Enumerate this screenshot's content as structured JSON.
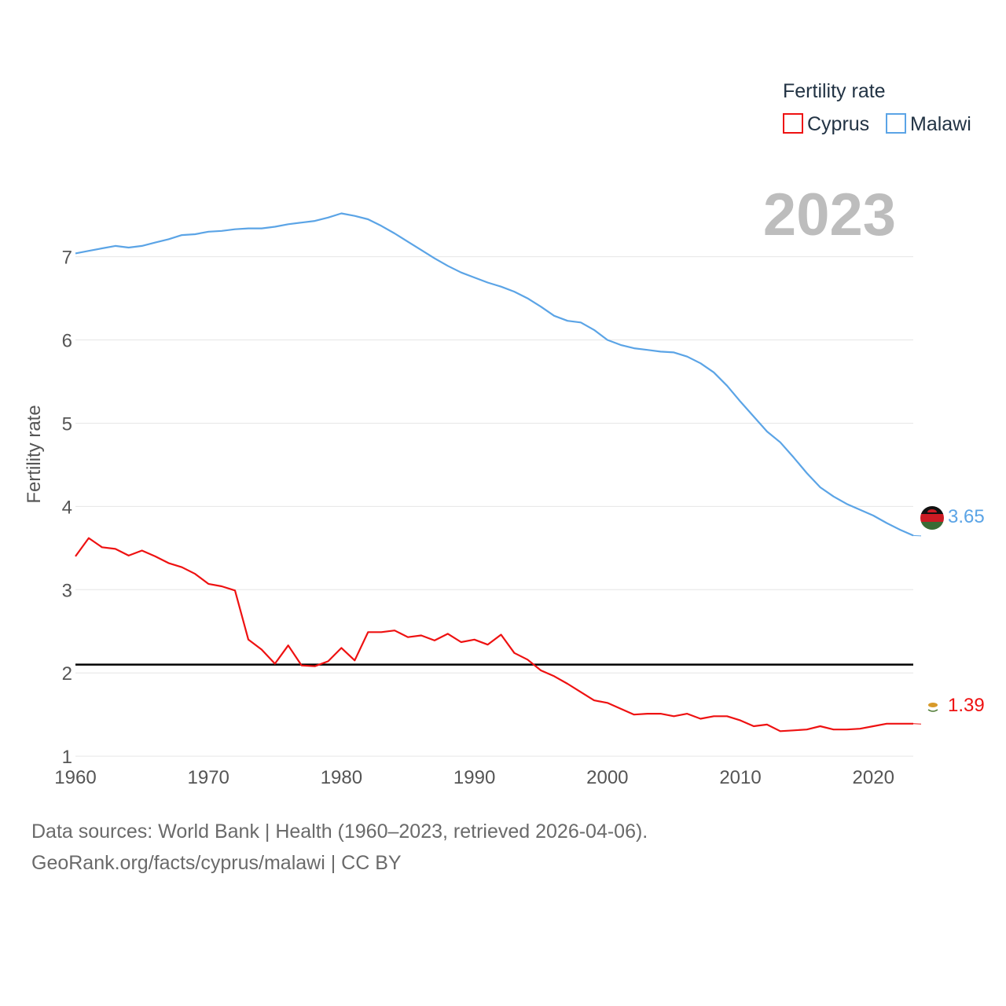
{
  "chart_data": {
    "type": "line",
    "title": "",
    "year_display": "2023",
    "xlabel": "",
    "ylabel": "Fertility rate",
    "legend": {
      "title": "Fertility rate",
      "position": "top-right"
    },
    "xlim": [
      1960,
      2023
    ],
    "ylim": [
      0.85,
      7.95
    ],
    "xticks": [
      1960,
      1970,
      1980,
      1990,
      2000,
      2010,
      2020
    ],
    "yticks": [
      1,
      2,
      3,
      4,
      5,
      6,
      7
    ],
    "reference_line": {
      "value": 2.1,
      "color": "#000000"
    },
    "x": [
      1960,
      1961,
      1962,
      1963,
      1964,
      1965,
      1966,
      1967,
      1968,
      1969,
      1970,
      1971,
      1972,
      1973,
      1974,
      1975,
      1976,
      1977,
      1978,
      1979,
      1980,
      1981,
      1982,
      1983,
      1984,
      1985,
      1986,
      1987,
      1988,
      1989,
      1990,
      1991,
      1992,
      1993,
      1994,
      1995,
      1996,
      1997,
      1998,
      1999,
      2000,
      2001,
      2002,
      2003,
      2004,
      2005,
      2006,
      2007,
      2008,
      2009,
      2010,
      2011,
      2012,
      2013,
      2014,
      2015,
      2016,
      2017,
      2018,
      2019,
      2020,
      2021,
      2022,
      2023
    ],
    "series": [
      {
        "name": "Cyprus",
        "color": "#ee1111",
        "end_label": "1.39",
        "values": [
          3.4,
          3.62,
          3.51,
          3.49,
          3.41,
          3.47,
          3.4,
          3.32,
          3.27,
          3.19,
          3.07,
          3.04,
          2.99,
          2.4,
          2.28,
          2.11,
          2.33,
          2.09,
          2.08,
          2.14,
          2.3,
          2.15,
          2.49,
          2.49,
          2.51,
          2.43,
          2.45,
          2.39,
          2.47,
          2.37,
          2.4,
          2.34,
          2.46,
          2.24,
          2.16,
          2.03,
          1.96,
          1.87,
          1.77,
          1.67,
          1.64,
          1.57,
          1.5,
          1.51,
          1.51,
          1.48,
          1.51,
          1.45,
          1.48,
          1.48,
          1.43,
          1.36,
          1.38,
          1.3,
          1.31,
          1.32,
          1.36,
          1.32,
          1.32,
          1.33,
          1.36,
          1.39,
          1.39,
          1.39
        ]
      },
      {
        "name": "Malawi",
        "color": "#5ba4e6",
        "end_label": "3.65",
        "values": [
          7.04,
          7.07,
          7.1,
          7.13,
          7.11,
          7.13,
          7.17,
          7.21,
          7.26,
          7.27,
          7.3,
          7.31,
          7.33,
          7.34,
          7.34,
          7.36,
          7.39,
          7.41,
          7.43,
          7.47,
          7.52,
          7.49,
          7.45,
          7.37,
          7.28,
          7.18,
          7.08,
          6.98,
          6.89,
          6.81,
          6.75,
          6.69,
          6.64,
          6.58,
          6.5,
          6.4,
          6.29,
          6.23,
          6.21,
          6.12,
          6.0,
          5.94,
          5.9,
          5.88,
          5.86,
          5.85,
          5.8,
          5.72,
          5.61,
          5.45,
          5.26,
          5.08,
          4.9,
          4.77,
          4.59,
          4.4,
          4.23,
          4.12,
          4.03,
          3.96,
          3.89,
          3.8,
          3.72,
          3.65
        ]
      }
    ]
  },
  "footer": {
    "source_line": "Data sources: World Bank | Health (1960–2023, retrieved 2026-04-06).",
    "attribution_line": "GeoRank.org/facts/cyprus/malawi | CC BY"
  }
}
